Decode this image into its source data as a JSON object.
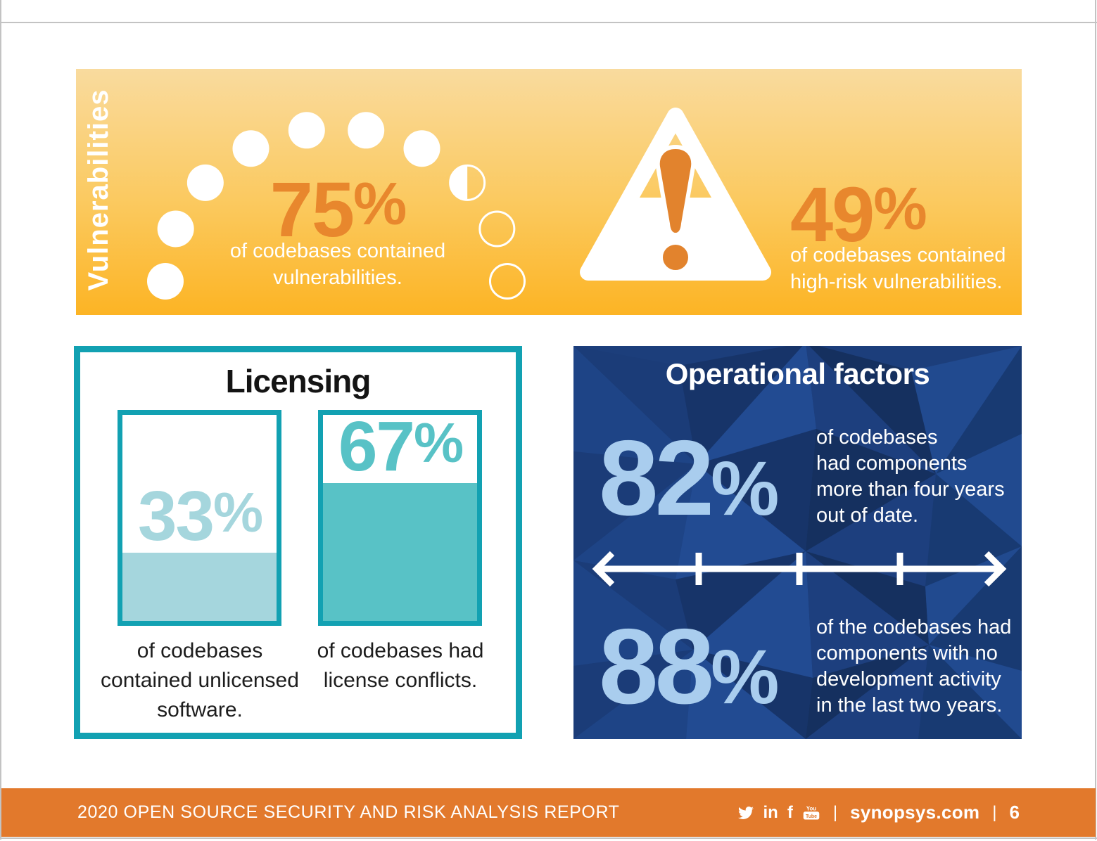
{
  "banner": {
    "section_label": "Vulnerabilities",
    "gauge_dots": [
      "filled",
      "filled",
      "filled",
      "filled",
      "filled",
      "filled",
      "filled",
      "half",
      "empty",
      "empty"
    ],
    "stat_vulnerabilities": {
      "number": "75",
      "unit": "%",
      "percent": 75,
      "caption_lines": [
        "of codebases contained",
        "vulnerabilities."
      ]
    },
    "stat_high_risk": {
      "number": "49",
      "unit": "%",
      "percent": 49,
      "caption_lines": [
        "of codebases contained",
        "high-risk vulnerabilities."
      ]
    }
  },
  "licensing": {
    "title": "Licensing",
    "bars": [
      {
        "number": "33",
        "unit": "%",
        "percent": 33,
        "caption_lines": [
          "of codebases",
          "contained unlicensed",
          "software."
        ]
      },
      {
        "number": "67",
        "unit": "%",
        "percent": 67,
        "caption_lines": [
          "of codebases had",
          "license conflicts.",
          ""
        ]
      }
    ]
  },
  "operational": {
    "title": "Operational factors",
    "stats": [
      {
        "number": "82",
        "unit": "%",
        "percent": 82,
        "caption_lines": [
          "of codebases",
          "had components",
          "more than four years",
          "out of date."
        ]
      },
      {
        "number": "88",
        "unit": "%",
        "percent": 88,
        "caption_lines": [
          "of the codebases had",
          "components with no",
          "development activity",
          "in the last two years."
        ]
      }
    ]
  },
  "footer": {
    "report_title": "2020 OPEN SOURCE SECURITY AND RISK ANALYSIS REPORT",
    "icons": [
      "twitter",
      "linkedin",
      "facebook",
      "youtube"
    ],
    "linkedin_label": "in",
    "facebook_label": "f",
    "youtube_top": "You",
    "youtube_bottom": "Tube",
    "separator": "|",
    "site": "synopsys.com",
    "page_number": "6"
  },
  "colors": {
    "accent_orange": "#e8872d",
    "footer_orange": "#e2792c",
    "banner_gradient_top": "#f9db9e",
    "banner_gradient_bottom": "#fcb424",
    "teal_border": "#12a1b2",
    "teal_light": "#a5d6dd",
    "teal_mid": "#58c2c6",
    "navy": "#1c3e7b",
    "light_blue": "#a9cdee"
  }
}
